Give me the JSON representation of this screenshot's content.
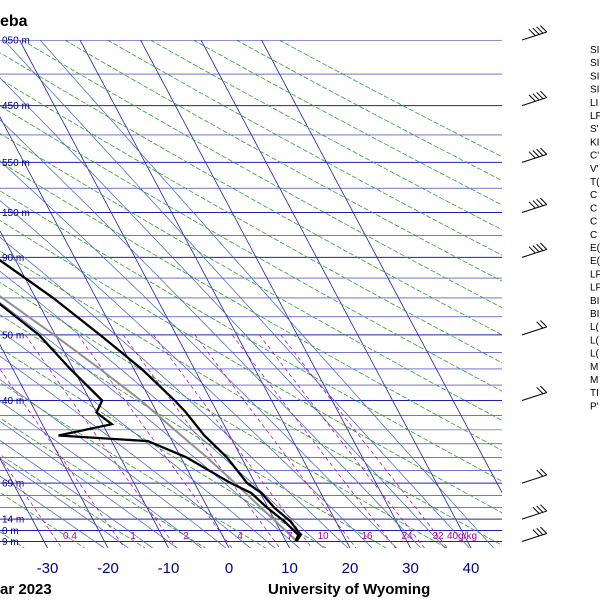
{
  "header": {
    "title_fragment": "eba"
  },
  "footer": {
    "date_fragment": "ar 2023",
    "credit": "University of Wyoming"
  },
  "chart_data": {
    "type": "skew-t",
    "x_axis": {
      "ticks": [
        -30,
        -20,
        -10,
        0,
        10,
        20,
        30,
        40
      ],
      "range": [
        -40,
        45
      ]
    },
    "pressure_levels": [
      {
        "p": 300,
        "label": "050 m"
      },
      {
        "p": 350,
        "label": "450 m"
      },
      {
        "p": 400,
        "label": "550 m"
      },
      {
        "p": 450,
        "label": "150 m"
      },
      {
        "p": 500,
        "label": "90 m"
      },
      {
        "p": 600,
        "label": "50 m"
      },
      {
        "p": 700,
        "label": "40 m"
      },
      {
        "p": 850,
        "label": "69 m"
      },
      {
        "p": 925,
        "label": "14 m"
      },
      {
        "p": 950,
        "label": "0 m"
      },
      {
        "p": 975,
        "label": "9 m"
      }
    ],
    "mixing_ratio_labels": [
      "0.4",
      "1",
      "2",
      "4",
      "7",
      "10",
      "16",
      "24",
      "32",
      "40g/kg"
    ],
    "temperature": [
      [
        974,
        11.8
      ],
      [
        960,
        13.0
      ],
      [
        930,
        12.5
      ],
      [
        900,
        11.0
      ],
      [
        870,
        10.2
      ],
      [
        850,
        8.7
      ],
      [
        800,
        7.6
      ],
      [
        760,
        5.8
      ],
      [
        720,
        4.8
      ],
      [
        700,
        4.0
      ],
      [
        650,
        1.3
      ],
      [
        600,
        -2.6
      ],
      [
        550,
        -7.1
      ],
      [
        500,
        -13.0
      ],
      [
        450,
        -20.5
      ],
      [
        420,
        -24.7
      ],
      [
        400,
        -29.0
      ],
      [
        380,
        -33.7
      ],
      [
        360,
        -38.5
      ],
      [
        340,
        -42.5
      ],
      [
        320,
        -46.8
      ],
      [
        300,
        -51.6
      ]
    ],
    "dewpoint": [
      [
        974,
        11.6
      ],
      [
        960,
        12.6
      ],
      [
        930,
        11.5
      ],
      [
        900,
        9.8
      ],
      [
        870,
        8.5
      ],
      [
        850,
        6.0
      ],
      [
        800,
        0.9
      ],
      [
        770,
        -4.0
      ],
      [
        760,
        -18.3
      ],
      [
        740,
        -8.5
      ],
      [
        720,
        -10.0
      ],
      [
        700,
        -8.0
      ],
      [
        650,
        -10.5
      ],
      [
        600,
        -12.7
      ],
      [
        550,
        -17.2
      ],
      [
        500,
        -20.5
      ],
      [
        450,
        -20.4
      ],
      [
        420,
        -17.0
      ],
      [
        400,
        -10.0
      ],
      [
        380,
        -13.5
      ],
      [
        360,
        -12.7
      ],
      [
        340,
        -13.6
      ],
      [
        320,
        -9.1
      ],
      [
        300,
        -7.6
      ]
    ],
    "parcel": [
      [
        974,
        11.8
      ],
      [
        900,
        8.8
      ],
      [
        850,
        6.7
      ],
      [
        800,
        4.3
      ],
      [
        750,
        1.4
      ],
      [
        700,
        -1.6
      ],
      [
        650,
        -5.6
      ],
      [
        600,
        -10.2
      ],
      [
        550,
        -15.5
      ],
      [
        500,
        -21.3
      ],
      [
        450,
        -28.3
      ],
      [
        400,
        -36.2
      ],
      [
        350,
        -45.1
      ],
      [
        300,
        -55.2
      ]
    ],
    "wind_levels": [
      300,
      350,
      400,
      450,
      500,
      600,
      700,
      850,
      925,
      975
    ],
    "station_index_abbrevs": [
      "SI",
      "SI",
      "SI",
      "SI",
      "LI",
      "LF",
      "S'",
      "KI",
      "C'",
      "V'",
      "T(",
      "C",
      "C",
      "C",
      "C",
      "E(",
      "E(",
      "LF",
      "LF",
      "BI",
      "BI",
      "L(",
      "L(",
      "L(",
      "M",
      "M",
      "TI",
      "P'"
    ]
  }
}
